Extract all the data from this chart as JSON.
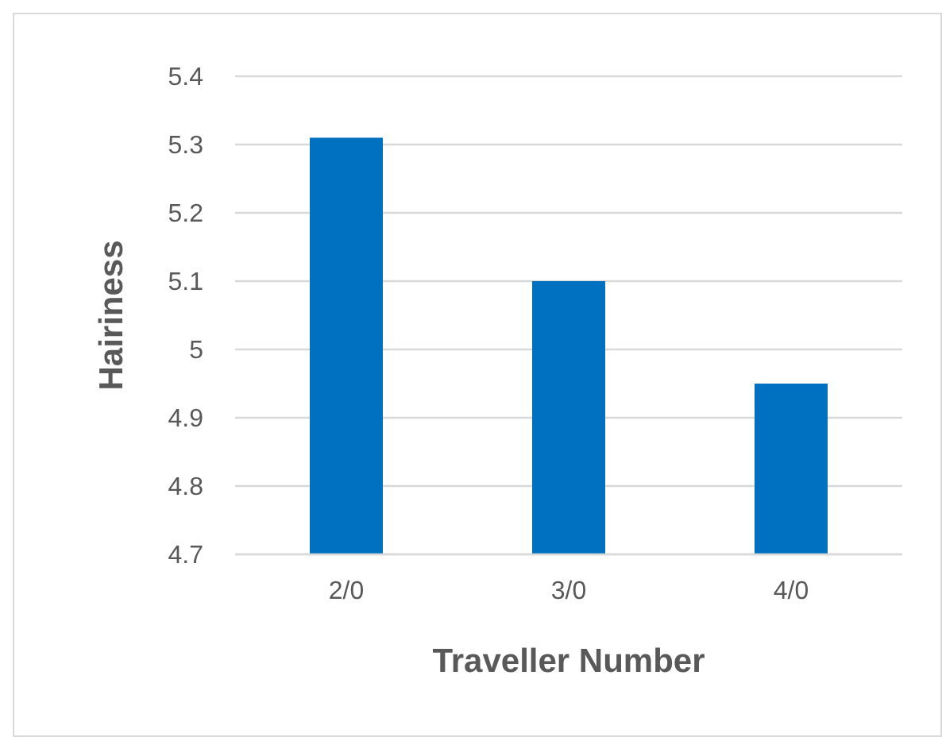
{
  "chart_data": {
    "type": "bar",
    "xlabel": "Traveller Number",
    "ylabel": "Hairiness",
    "categories": [
      "2/0",
      "3/0",
      "4/0"
    ],
    "values": [
      5.31,
      5.1,
      4.95
    ],
    "color": "#0070c0",
    "ylim": [
      4.7,
      5.4
    ],
    "yticks": [
      4.7,
      4.8,
      4.9,
      5,
      5.1,
      5.2,
      5.3,
      5.4
    ],
    "grid": "y"
  }
}
